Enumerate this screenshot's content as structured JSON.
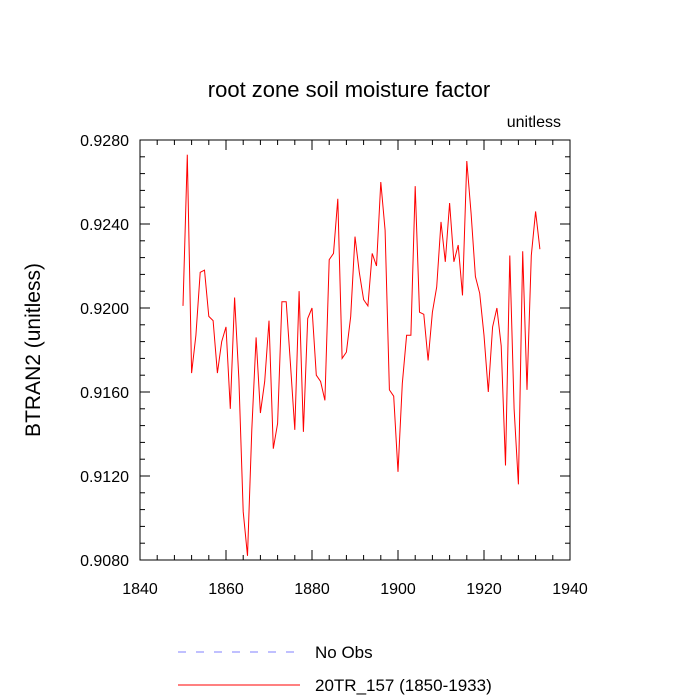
{
  "chart_data": {
    "type": "line",
    "title": "root zone soil moisture factor",
    "units_label": "unitless",
    "ylabel": "BTRAN2  (unitless)",
    "xlabel": "",
    "xlim": [
      1840,
      1940
    ],
    "ylim": [
      0.908,
      0.928
    ],
    "xticks": [
      1840,
      1860,
      1880,
      1900,
      1920,
      1940
    ],
    "xtick_labels": [
      "1840",
      "1860",
      "1880",
      "1900",
      "1920",
      "1940"
    ],
    "yticks": [
      0.908,
      0.912,
      0.916,
      0.92,
      0.924,
      0.928
    ],
    "ytick_labels": [
      "0.9080",
      "0.9120",
      "0.9160",
      "0.9200",
      "0.9240",
      "0.9280"
    ],
    "series": [
      {
        "name": "20TR_157 (1850-1933)",
        "color": "#ff0000",
        "style": "solid",
        "x": [
          1850,
          1851,
          1852,
          1853,
          1854,
          1855,
          1856,
          1857,
          1858,
          1859,
          1860,
          1861,
          1862,
          1863,
          1864,
          1865,
          1866,
          1867,
          1868,
          1869,
          1870,
          1871,
          1872,
          1873,
          1874,
          1875,
          1876,
          1877,
          1878,
          1879,
          1880,
          1881,
          1882,
          1883,
          1884,
          1885,
          1886,
          1887,
          1888,
          1889,
          1890,
          1891,
          1892,
          1893,
          1894,
          1895,
          1896,
          1897,
          1898,
          1899,
          1900,
          1901,
          1902,
          1903,
          1904,
          1905,
          1906,
          1907,
          1908,
          1909,
          1910,
          1911,
          1912,
          1913,
          1914,
          1915,
          1916,
          1917,
          1918,
          1919,
          1920,
          1921,
          1922,
          1923,
          1924,
          1925,
          1926,
          1927,
          1928,
          1929,
          1930,
          1931,
          1932,
          1933
        ],
        "values": [
          0.9201,
          0.9273,
          0.9169,
          0.9187,
          0.9217,
          0.9218,
          0.9196,
          0.9194,
          0.9169,
          0.9184,
          0.9191,
          0.9152,
          0.9205,
          0.9166,
          0.9103,
          0.9082,
          0.9142,
          0.9186,
          0.915,
          0.9165,
          0.9194,
          0.9133,
          0.9145,
          0.9203,
          0.9203,
          0.9173,
          0.9142,
          0.9208,
          0.9141,
          0.9195,
          0.92,
          0.9168,
          0.9165,
          0.9156,
          0.9223,
          0.9226,
          0.9252,
          0.9176,
          0.9179,
          0.9196,
          0.9234,
          0.9217,
          0.9204,
          0.9201,
          0.9226,
          0.922,
          0.926,
          0.9237,
          0.9161,
          0.9158,
          0.9122,
          0.9164,
          0.9187,
          0.9187,
          0.9258,
          0.9198,
          0.9197,
          0.9175,
          0.9198,
          0.921,
          0.9241,
          0.9222,
          0.925,
          0.9222,
          0.923,
          0.9206,
          0.927,
          0.9245,
          0.9215,
          0.9207,
          0.9187,
          0.916,
          0.9191,
          0.92,
          0.9182,
          0.9125,
          0.9225,
          0.9152,
          0.9116,
          0.9227,
          0.9161,
          0.9225,
          0.9246,
          0.9228
        ]
      },
      {
        "name": "No Obs",
        "color": "#8080ff",
        "style": "dashed",
        "x": [],
        "values": []
      }
    ],
    "legend_position": "bottom-center"
  }
}
